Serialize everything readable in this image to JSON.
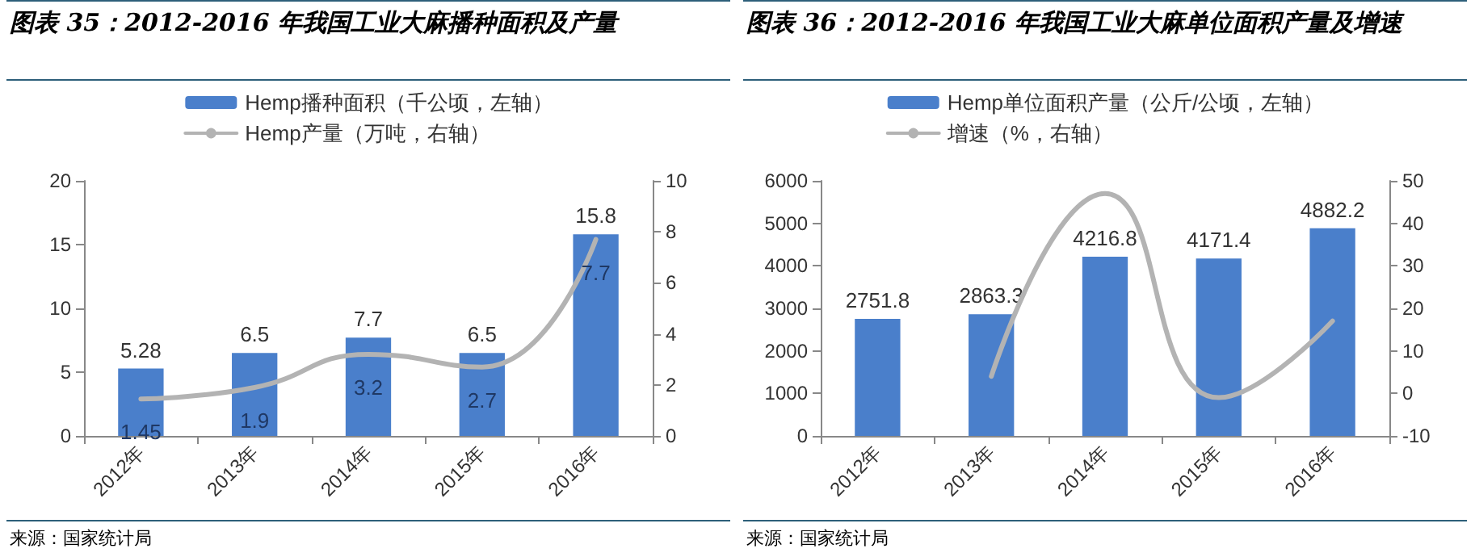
{
  "chart_data": [
    {
      "type": "bar",
      "title": "图表 35：2012-2016 年我国工业大麻播种面积及产量",
      "categories": [
        "2012年",
        "2013年",
        "2014年",
        "2015年",
        "2016年"
      ],
      "series": [
        {
          "name": "Hemp播种面积（千公顷，左轴）",
          "color": "#4a7fcb",
          "values": [
            5.28,
            6.5,
            7.7,
            6.5,
            15.8
          ]
        },
        {
          "type": "line",
          "axis": "y2",
          "name": "Hemp产量（万吨，右轴）",
          "color": "#b3b3b3",
          "values": [
            1.45,
            1.9,
            3.2,
            2.7,
            7.7
          ]
        }
      ],
      "ylim": [
        0,
        20
      ],
      "yticks": [
        0,
        5,
        10,
        15,
        20
      ],
      "y2lim": [
        0,
        10
      ],
      "y2ticks": [
        0,
        2,
        4,
        6,
        8,
        10
      ],
      "data_labels": true,
      "legend": "top",
      "grid": false,
      "marker": "none",
      "line_style": "solid",
      "annotations": [
        "来源：国家统计局"
      ]
    },
    {
      "type": "bar",
      "title": "图表 36：2012-2016 年我国工业大麻单位面积产量及增速",
      "categories": [
        "2012年",
        "2013年",
        "2014年",
        "2015年",
        "2016年"
      ],
      "series": [
        {
          "name": "Hemp单位面积产量（公斤/公顷，左轴）",
          "color": "#4a7fcb",
          "values": [
            2751.8,
            2863.3,
            4216.8,
            4171.4,
            4882.2
          ],
          "value_labels": [
            "2751.8",
            "2863.3",
            "4216.8",
            "4171.4",
            "4882.2"
          ]
        },
        {
          "type": "line",
          "axis": "y2",
          "name": "增速（%，右轴）",
          "color": "#b3b3b3",
          "values": [
            null,
            4,
            47,
            -1,
            17
          ]
        }
      ],
      "ylim": [
        0,
        6000
      ],
      "yticks": [
        0,
        1000,
        2000,
        3000,
        4000,
        5000,
        6000
      ],
      "y2lim": [
        -10,
        50
      ],
      "y2ticks": [
        -10,
        0,
        10,
        20,
        30,
        40,
        50
      ],
      "legend": "top",
      "grid": false,
      "marker": "none",
      "line_style": "solid",
      "annotations": [
        "来源：国家统计局"
      ]
    }
  ]
}
